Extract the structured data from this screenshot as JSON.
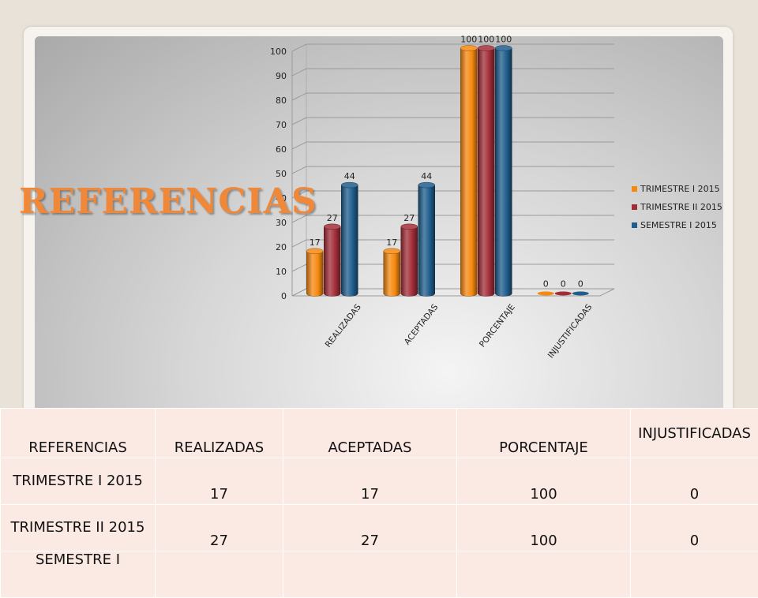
{
  "slide": {
    "title": "REFERENCIAS"
  },
  "colors": {
    "series": [
      "#f5880f",
      "#a22d38",
      "#1f5d8c"
    ],
    "table_cell": "#fbe9e4"
  },
  "chart_data": {
    "type": "bar",
    "title": "",
    "xlabel": "",
    "ylabel": "",
    "ylim": [
      0,
      100
    ],
    "yticks": [
      0,
      10,
      20,
      30,
      40,
      50,
      60,
      70,
      80,
      90,
      100
    ],
    "categories": [
      "REALIZADAS",
      "ACEPTADAS",
      "PORCENTAJE",
      "INJUSTIFICADAS"
    ],
    "series": [
      {
        "name": "TRIMESTRE I 2015",
        "values": [
          17,
          17,
          100,
          0
        ]
      },
      {
        "name": "TRIMESTRE II 2015",
        "values": [
          27,
          27,
          100,
          0
        ]
      },
      {
        "name": "SEMESTRE I 2015",
        "values": [
          44,
          44,
          100,
          0
        ]
      }
    ],
    "legend_position": "right",
    "data_labels": true,
    "style": "3d-cylinder",
    "grid": true
  },
  "table": {
    "headers": [
      "REFERENCIAS",
      "REALIZADAS",
      "ACEPTADAS",
      "PORCENTAJE",
      "INJUSTIFICADAS"
    ],
    "rows": [
      [
        "TRIMESTRE I 2015",
        "17",
        "17",
        "100",
        "0"
      ],
      [
        "TRIMESTRE II 2015",
        "27",
        "27",
        "100",
        "0"
      ],
      [
        "SEMESTRE I",
        "",
        "",
        "",
        ""
      ]
    ]
  }
}
